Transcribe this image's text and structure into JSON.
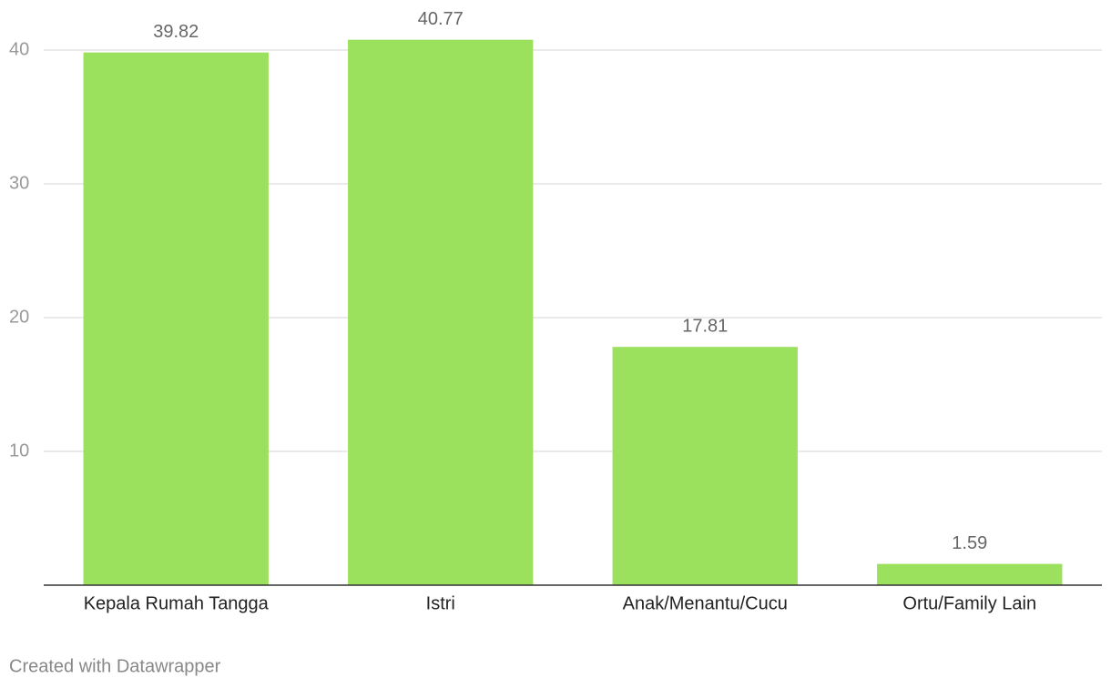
{
  "chart_data": {
    "type": "bar",
    "categories": [
      "Kepala Rumah Tangga",
      "Istri",
      "Anak/Menantu/Cucu",
      "Ortu/Family Lain"
    ],
    "values": [
      39.82,
      40.77,
      17.81,
      1.59
    ],
    "color": "#9be15d",
    "ylim": [
      0,
      42
    ],
    "yticks": [
      10,
      20,
      30,
      40
    ],
    "grid": true,
    "credit": "Created with Datawrapper"
  }
}
